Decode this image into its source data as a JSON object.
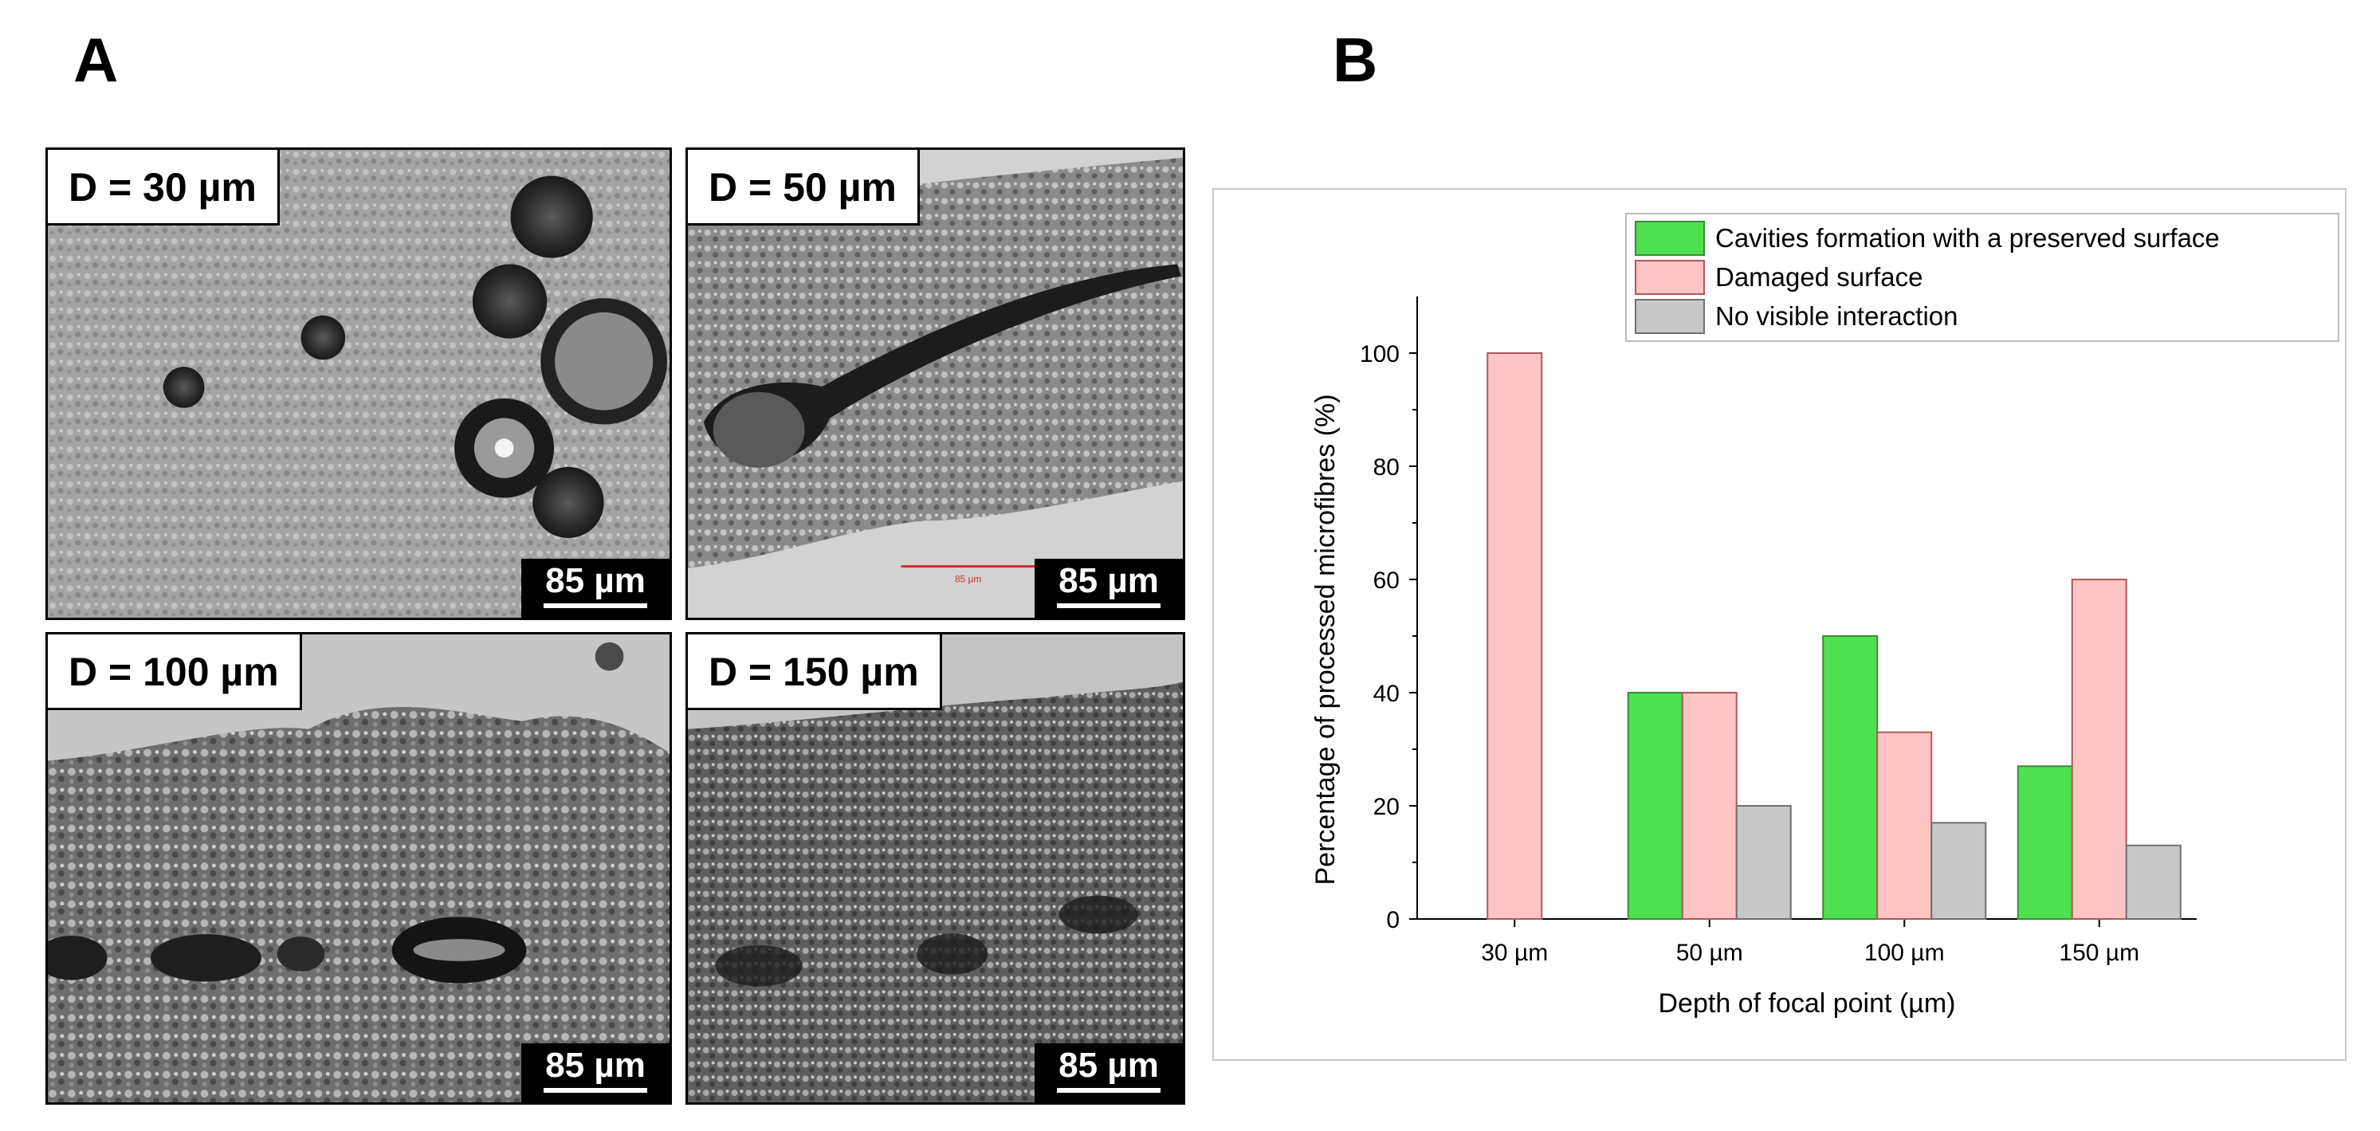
{
  "panels": {
    "a_label": "A",
    "b_label": "B"
  },
  "micrographs": [
    {
      "depth_label": "D = 30 µm",
      "scale_label": "85 µm"
    },
    {
      "depth_label": "D = 50 µm",
      "scale_label": "85 µm",
      "inner_scale_label": "85 µm"
    },
    {
      "depth_label": "D = 100 µm",
      "scale_label": "85 µm"
    },
    {
      "depth_label": "D = 150 µm",
      "scale_label": "85 µm"
    }
  ],
  "chart_data": {
    "type": "bar",
    "title": "",
    "xlabel": "Depth of focal point (µm)",
    "ylabel": "Percentage of processed microfibres (%)",
    "categories": [
      "30 µm",
      "50 µm",
      "100 µm",
      "150 µm"
    ],
    "ylim": [
      0,
      110
    ],
    "yticks": [
      0,
      20,
      40,
      60,
      80,
      100
    ],
    "grid": false,
    "legend_position": "top-right",
    "series": [
      {
        "name": "Cavities formation with a preserved surface",
        "color": "#4fe04f",
        "values": [
          0,
          40,
          50,
          27
        ]
      },
      {
        "name": "Damaged surface",
        "color": "#ffc4c4",
        "values": [
          100,
          40,
          33,
          60
        ]
      },
      {
        "name": "No visible interaction",
        "color": "#c8c8c8",
        "values": [
          0,
          20,
          17,
          13
        ]
      }
    ],
    "edge_colors": [
      "#3a8a3a",
      "#b05858",
      "#707070"
    ]
  }
}
